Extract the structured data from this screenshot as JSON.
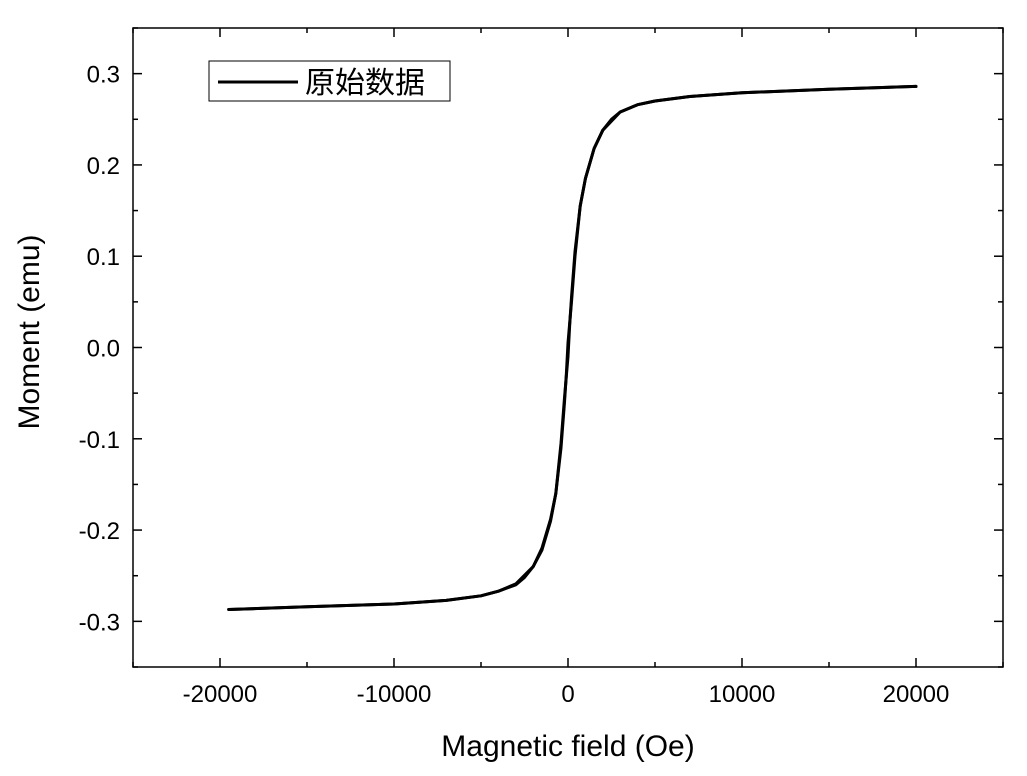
{
  "chart_data": {
    "type": "line",
    "title": "",
    "xlabel": "Magnetic field (Oe)",
    "ylabel": "Moment (emu)",
    "xlim": [
      -25000,
      25000
    ],
    "ylim": [
      -0.35,
      0.35
    ],
    "x_ticks": [
      -20000,
      -10000,
      0,
      10000,
      20000
    ],
    "x_tick_labels": [
      "-20000",
      "-10000",
      "0",
      "10000",
      "20000"
    ],
    "y_ticks": [
      -0.3,
      -0.2,
      -0.1,
      0.0,
      0.1,
      0.2,
      0.3
    ],
    "y_tick_labels": [
      "-0.3",
      "-0.2",
      "-0.1",
      "0.0",
      "0.1",
      "0.2",
      "0.3"
    ],
    "grid": false,
    "legend_position": "top-left",
    "line_color": "#000000",
    "series": [
      {
        "name": "原始数据",
        "branches": [
          {
            "direction": "descending",
            "x": [
              20000,
              15000,
              10000,
              7000,
              5000,
              4000,
              3000,
              2500,
              2000,
              1500,
              1000,
              700,
              400,
              200,
              0,
              -100,
              -200,
              -400,
              -700,
              -1000,
              -1500,
              -2000,
              -3000,
              -4000,
              -5000,
              -7000,
              -10000,
              -15000,
              -19500
            ],
            "y": [
              0.286,
              0.283,
              0.279,
              0.275,
              0.27,
              0.266,
              0.258,
              0.25,
              0.238,
              0.218,
              0.185,
              0.155,
              0.1,
              0.05,
              0.005,
              -0.03,
              -0.06,
              -0.11,
              -0.16,
              -0.19,
              -0.222,
              -0.24,
              -0.259,
              -0.267,
              -0.272,
              -0.277,
              -0.281,
              -0.284,
              -0.287
            ]
          },
          {
            "direction": "ascending",
            "x": [
              -19500,
              -15000,
              -10000,
              -7000,
              -5000,
              -4000,
              -3000,
              -2500,
              -2000,
              -1500,
              -1000,
              -700,
              -400,
              -200,
              0,
              100,
              200,
              400,
              700,
              1000,
              1500,
              2000,
              3000,
              4000,
              5000,
              7000,
              10000,
              15000,
              20000
            ],
            "y": [
              -0.287,
              -0.284,
              -0.281,
              -0.277,
              -0.272,
              -0.267,
              -0.26,
              -0.252,
              -0.24,
              -0.22,
              -0.188,
              -0.16,
              -0.105,
              -0.055,
              -0.01,
              0.025,
              0.055,
              0.105,
              0.155,
              0.185,
              0.218,
              0.238,
              0.258,
              0.266,
              0.27,
              0.275,
              0.279,
              0.283,
              0.286
            ]
          }
        ]
      }
    ]
  }
}
